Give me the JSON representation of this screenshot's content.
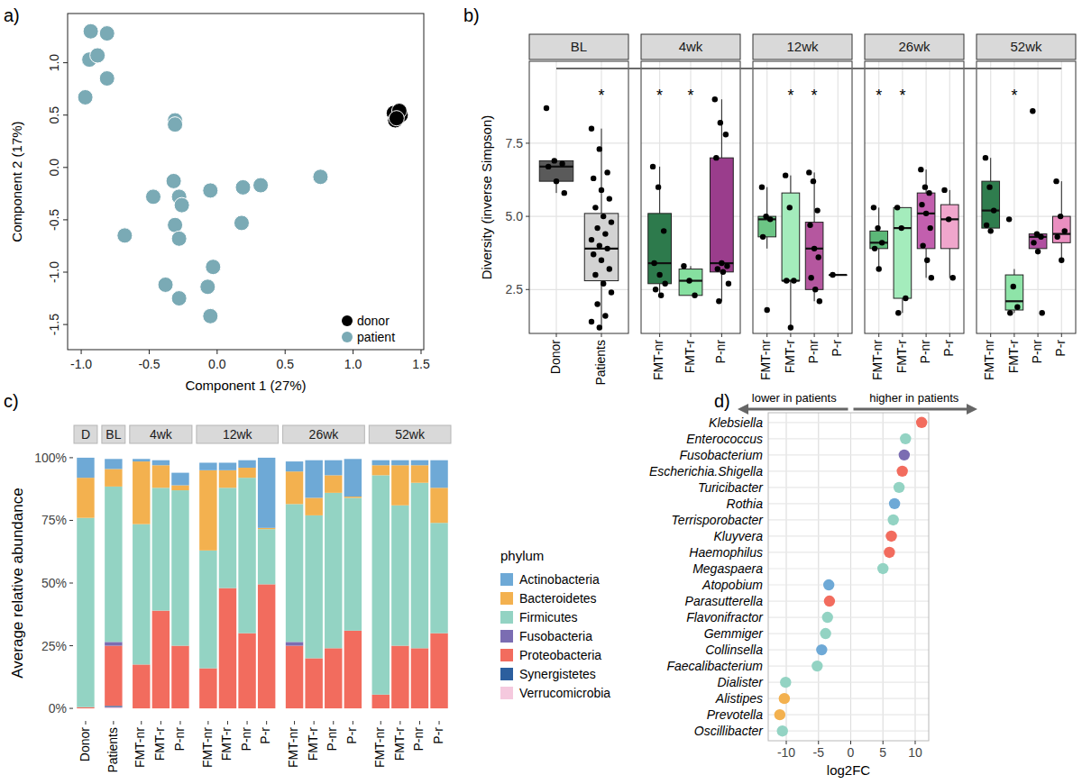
{
  "chart_data": [
    {
      "type": "scatter",
      "panel_label": "a)",
      "x_label": "Component 1 (27%)",
      "y_label": "Component 2 (17%)",
      "xlim": [
        -1.1,
        1.52
      ],
      "ylim": [
        -1.74,
        1.47
      ],
      "xticks": [
        {
          "value": -1,
          "label": "-1.0"
        },
        -0.5,
        {
          "value": 0,
          "label": "0.0"
        },
        0.5,
        {
          "value": 1,
          "label": "1.0"
        },
        1.5
      ],
      "yticks": [
        -1.5,
        {
          "value": -1,
          "label": "-1.0"
        },
        -0.5,
        {
          "value": 0,
          "label": "0.0"
        },
        0.5,
        {
          "value": 1,
          "label": "1.0"
        }
      ],
      "grid": false,
      "legend": "bottom-right",
      "series": [
        {
          "name": "donor",
          "color": "#000000",
          "x": [
            1.3,
            1.33,
            1.35,
            1.31,
            1.34,
            1.32
          ],
          "y": [
            0.52,
            0.48,
            0.5,
            0.45,
            0.54,
            0.47
          ]
        },
        {
          "name": "patient",
          "color": "#7aaab5",
          "x": [
            -0.93,
            -0.81,
            -0.94,
            -0.88,
            -0.97,
            -0.81,
            -0.31,
            -0.31,
            -0.32,
            -0.47,
            -0.28,
            -0.26,
            -0.05,
            -0.31,
            -0.28,
            0.19,
            0.32,
            0.18,
            0.76,
            -0.68,
            -0.03,
            -0.38,
            -0.28,
            -0.07,
            -0.05
          ],
          "y": [
            1.3,
            1.28,
            1.03,
            1.07,
            0.67,
            0.85,
            0.45,
            0.41,
            -0.13,
            -0.28,
            -0.28,
            -0.36,
            -0.22,
            -0.55,
            -0.68,
            -0.19,
            -0.17,
            -0.53,
            -0.09,
            -0.65,
            -0.95,
            -1.12,
            -1.25,
            -1.14,
            -1.42
          ]
        }
      ]
    },
    {
      "type": "box",
      "panel_label": "b)",
      "y_label": "Diversity (inverse Simpson)",
      "ylim": [
        1.0,
        10.3
      ],
      "yticks": [
        2.5,
        {
          "value": 5,
          "label": "5.0"
        },
        7.5
      ],
      "grid": true,
      "facets": [
        {
          "name": "BL",
          "groups": [
            {
              "name": "Donor",
              "color": "#5a5a5a",
              "min": 5.8,
              "q1": 6.2,
              "median": 6.7,
              "q3": 6.9,
              "max": 6.9,
              "points": [
                8.7,
                6.9,
                6.8,
                6.7,
                6.2,
                5.8
              ]
            },
            {
              "name": "Patients",
              "color": "#d3d3d3",
              "min": 1.2,
              "q1": 2.8,
              "median": 3.9,
              "q3": 5.1,
              "max": 8.0,
              "points": [
                8.0,
                7.3,
                6.5,
                6.3,
                5.9,
                5.6,
                5.3,
                5.0,
                4.8,
                4.6,
                4.4,
                4.2,
                4.0,
                3.9,
                3.7,
                3.5,
                3.2,
                3.0,
                2.7,
                2.4,
                2.0,
                1.6,
                1.4,
                1.2
              ],
              "annotation": "*"
            }
          ]
        },
        {
          "name": "4wk",
          "groups": [
            {
              "name": "FMT-nr",
              "color": "#2d7a4c",
              "min": 2.3,
              "q1": 2.7,
              "median": 3.4,
              "q3": 5.1,
              "max": 6.7,
              "points": [
                6.7,
                6.0,
                4.5,
                3.4,
                3.0,
                2.7,
                2.5,
                2.3
              ],
              "annotation": "*"
            },
            {
              "name": "FMT-r",
              "color": "#86e0a0",
              "min": 2.3,
              "q1": 2.3,
              "median": 2.8,
              "q3": 3.2,
              "max": 3.3,
              "points": [
                3.3,
                2.8,
                2.3
              ],
              "annotation": "*"
            },
            {
              "name": "P-nr",
              "color": "#9a3d8c",
              "min": 2.1,
              "q1": 3.1,
              "median": 3.4,
              "q3": 7.0,
              "max": 9.0,
              "points": [
                9.0,
                8.2,
                7.8,
                7.0,
                3.4,
                3.3,
                3.2,
                3.1,
                2.7,
                2.1
              ]
            }
          ]
        },
        {
          "name": "12wk",
          "groups": [
            {
              "name": "FMT-nr",
              "color": "#6cc585",
              "min": 3.9,
              "q1": 4.3,
              "median": 4.9,
              "q3": 5.0,
              "max": 6.0,
              "points": [
                6.0,
                5.0,
                4.9,
                4.3,
                1.8
              ]
            },
            {
              "name": "FMT-r",
              "color": "#a4ecbc",
              "min": 1.2,
              "q1": 2.8,
              "median": 2.8,
              "q3": 5.8,
              "max": 6.4,
              "points": [
                6.4,
                5.3,
                2.8,
                2.8,
                1.2
              ],
              "annotation": "*"
            },
            {
              "name": "P-nr",
              "color": "#b5579f",
              "min": 2.1,
              "q1": 2.5,
              "median": 3.9,
              "q3": 4.8,
              "max": 6.5,
              "points": [
                6.5,
                6.2,
                5.2,
                4.7,
                3.9,
                3.6,
                2.9,
                2.5,
                2.1
              ],
              "annotation": "*"
            },
            {
              "name": "P-r",
              "color": "#e0a2c8",
              "min": 3.0,
              "q1": 3.0,
              "median": 3.0,
              "q3": 3.0,
              "max": 3.0,
              "points": [
                3.0
              ]
            }
          ]
        },
        {
          "name": "26wk",
          "groups": [
            {
              "name": "FMT-nr",
              "color": "#5cb878",
              "min": 3.2,
              "q1": 3.9,
              "median": 4.1,
              "q3": 4.5,
              "max": 5.3,
              "points": [
                5.3,
                4.6,
                4.1,
                3.9,
                3.2
              ],
              "annotation": "*"
            },
            {
              "name": "FMT-r",
              "color": "#a4ecbc",
              "min": 1.7,
              "q1": 2.2,
              "median": 4.6,
              "q3": 5.3,
              "max": 5.3,
              "points": [
                5.3,
                4.6,
                2.2,
                1.7
              ],
              "annotation": "*"
            },
            {
              "name": "P-nr",
              "color": "#c25fae",
              "min": 2.9,
              "q1": 3.9,
              "median": 5.1,
              "q3": 5.8,
              "max": 6.6,
              "points": [
                6.6,
                6.0,
                5.8,
                5.4,
                5.1,
                4.6,
                4.0,
                3.5,
                2.9
              ]
            },
            {
              "name": "P-r",
              "color": "#f0a6cc",
              "min": 2.9,
              "q1": 3.9,
              "median": 4.9,
              "q3": 5.4,
              "max": 5.9,
              "points": [
                5.9,
                4.9,
                2.9
              ]
            }
          ]
        },
        {
          "name": "52wk",
          "groups": [
            {
              "name": "FMT-nr",
              "color": "#2f7d4e",
              "min": 4.5,
              "q1": 4.6,
              "median": 5.2,
              "q3": 6.2,
              "max": 7.0,
              "points": [
                7.0,
                6.0,
                5.2,
                4.7,
                4.5
              ]
            },
            {
              "name": "FMT-r",
              "color": "#8ee4a8",
              "min": 1.7,
              "q1": 1.8,
              "median": 2.1,
              "q3": 3.0,
              "max": 3.2,
              "points": [
                4.9,
                2.6,
                1.9,
                1.7
              ],
              "annotation": "*"
            },
            {
              "name": "P-nr",
              "color": "#b050a0",
              "min": 3.7,
              "q1": 3.9,
              "median": 4.3,
              "q3": 4.4,
              "max": 4.4,
              "points": [
                8.6,
                4.4,
                4.3,
                4.1,
                3.8,
                1.7
              ]
            },
            {
              "name": "P-r",
              "color": "#ea8fc0",
              "min": 3.5,
              "q1": 4.1,
              "median": 4.4,
              "q3": 5.0,
              "max": 6.2,
              "points": [
                6.2,
                5.0,
                4.5,
                4.3,
                3.5
              ]
            }
          ]
        }
      ]
    },
    {
      "type": "bar",
      "panel_label": "c)",
      "stacked": true,
      "grid": false,
      "legend": "right",
      "legend_title": "phylum",
      "y_label": "Average relative abundance",
      "ylim": [
        -5,
        105
      ],
      "yticks": [
        {
          "value": 0,
          "label": "0%"
        },
        {
          "value": 25,
          "label": "25%"
        },
        {
          "value": 50,
          "label": "50%"
        },
        {
          "value": 75,
          "label": "75%"
        },
        {
          "value": 100,
          "label": "100%"
        }
      ],
      "facets": [
        {
          "name": "D",
          "categories": [
            "Donor"
          ]
        },
        {
          "name": "BL",
          "categories": [
            "Patients"
          ]
        },
        {
          "name": "4wk",
          "categories": [
            "FMT-nr",
            "FMT-r",
            "P-nr"
          ]
        },
        {
          "name": "12wk",
          "categories": [
            "FMT-nr",
            "FMT-r",
            "P-nr",
            "P-r"
          ]
        },
        {
          "name": "26wk",
          "categories": [
            "FMT-nr",
            "FMT-r",
            "P-nr",
            "P-r"
          ]
        },
        {
          "name": "52wk",
          "categories": [
            "FMT-nr",
            "FMT-r",
            "P-nr",
            "P-r"
          ]
        }
      ],
      "series": [
        {
          "name": "Actinobacteria",
          "color": "#6ea9d6",
          "values": [
            8,
            4,
            1,
            2,
            5,
            3,
            3,
            3,
            28,
            4,
            15,
            6,
            15,
            2,
            2,
            2,
            11
          ]
        },
        {
          "name": "Bacteroidetes",
          "color": "#f3b14f",
          "values": [
            16,
            7,
            25,
            9,
            2,
            32,
            7,
            4,
            0.5,
            13,
            7,
            7,
            0.5,
            4,
            16,
            7,
            14
          ]
        },
        {
          "name": "Firmicutes",
          "color": "#93d3c3",
          "values": [
            75.5,
            62,
            56,
            49,
            62,
            47,
            40,
            62,
            22,
            55,
            57,
            62,
            53,
            87.5,
            56,
            66,
            44
          ]
        },
        {
          "name": "Fusobacteria",
          "color": "#7b6db2",
          "values": [
            0,
            1.5,
            0,
            0,
            0,
            0,
            0,
            0,
            0,
            1.5,
            0,
            0,
            0,
            0,
            0,
            0,
            0
          ]
        },
        {
          "name": "Proteobacteria",
          "color": "#f26c5e",
          "values": [
            0.5,
            24,
            17.5,
            39,
            25,
            16,
            48,
            30,
            49.5,
            25,
            20,
            24,
            31,
            5.5,
            25,
            24,
            30
          ]
        },
        {
          "name": "Synergistetes",
          "color": "#2c5f9e",
          "values": [
            0,
            0.5,
            0,
            0,
            0,
            0,
            0,
            0,
            0,
            0,
            0,
            0,
            0,
            0,
            0,
            0,
            0
          ]
        },
        {
          "name": "Verrucomicrobia",
          "color": "#f5c9de",
          "values": [
            0,
            0.5,
            0,
            0,
            0,
            0,
            0,
            0,
            0,
            0,
            0,
            0,
            0,
            0,
            0,
            0,
            0
          ]
        }
      ]
    },
    {
      "type": "dot",
      "panel_label": "d)",
      "orientation": "horizontal",
      "grid": true,
      "x_label": "log2FC",
      "arrow_labels": [
        "lower in patients",
        "higher in patients"
      ],
      "xlim": [
        -12.8,
        12.1
      ],
      "xticks": [
        -10,
        -5,
        0,
        5,
        10
      ],
      "categories": [
        "Klebsiella",
        "Enterococcus",
        "Fusobacterium",
        "Escherichia.Shigella",
        "Turicibacter",
        "Rothia",
        "Terrisporobacter",
        "Kluyvera",
        "Haemophilus",
        "Megaspaera",
        "Atopobium",
        "Parasutterella",
        "Flavonifractor",
        "Gemmiger",
        "Collinsella",
        "Faecalibacterium",
        "Dialister",
        "Alistipes",
        "Prevotella",
        "Oscillibacter"
      ],
      "values": [
        11,
        8.5,
        8.3,
        8.0,
        7.5,
        6.8,
        6.6,
        6.3,
        6.0,
        5.0,
        -3.4,
        -3.3,
        -3.6,
        -3.9,
        -4.5,
        -5.2,
        -10.1,
        -10.3,
        -11,
        -10.6
      ],
      "colors": [
        "#f26c5e",
        "#93d3c3",
        "#7b6db2",
        "#f26c5e",
        "#93d3c3",
        "#6ea9d6",
        "#93d3c3",
        "#f26c5e",
        "#f26c5e",
        "#93d3c3",
        "#6ea9d6",
        "#f26c5e",
        "#93d3c3",
        "#93d3c3",
        "#6ea9d6",
        "#93d3c3",
        "#93d3c3",
        "#f3b14f",
        "#f3b14f",
        "#93d3c3"
      ]
    }
  ]
}
